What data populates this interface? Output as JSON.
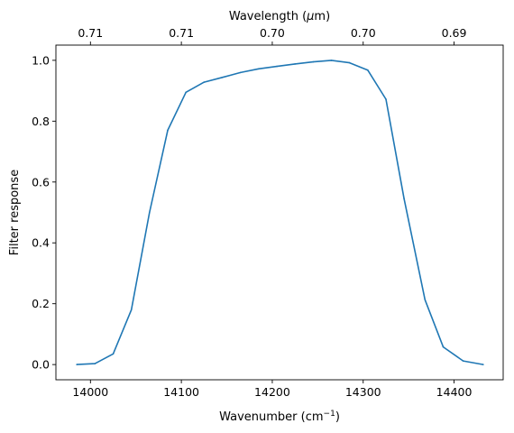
{
  "chart_data": {
    "type": "line",
    "xlabel_main": "Wavenumber (cm",
    "xlabel_sup": "−1",
    "xlabel_end": ")",
    "top_xlabel_main": "Wavelength (",
    "top_xlabel_mu": "μ",
    "top_xlabel_end": "m)",
    "ylabel": "Filter response",
    "xlim": [
      13962,
      14454
    ],
    "ylim": [
      -0.05,
      1.05
    ],
    "xticks": [
      {
        "value": 14000,
        "label": "14000"
      },
      {
        "value": 14100,
        "label": "14100"
      },
      {
        "value": 14200,
        "label": "14200"
      },
      {
        "value": 14300,
        "label": "14300"
      },
      {
        "value": 14400,
        "label": "14400"
      }
    ],
    "yticks": [
      {
        "value": 0.0,
        "label": "0.0"
      },
      {
        "value": 0.2,
        "label": "0.2"
      },
      {
        "value": 0.4,
        "label": "0.4"
      },
      {
        "value": 0.6,
        "label": "0.6"
      },
      {
        "value": 0.8,
        "label": "0.8"
      },
      {
        "value": 1.0,
        "label": "1.0"
      }
    ],
    "top_ticks": [
      {
        "value": 14000,
        "label": "0.71"
      },
      {
        "value": 14100,
        "label": "0.71"
      },
      {
        "value": 14200,
        "label": "0.70"
      },
      {
        "value": 14300,
        "label": "0.70"
      },
      {
        "value": 14400,
        "label": "0.69"
      }
    ],
    "series_color": "#1f77b4",
    "x": [
      13985,
      14005,
      14025,
      14045,
      14065,
      14085,
      14105,
      14125,
      14145,
      14165,
      14185,
      14205,
      14225,
      14245,
      14265,
      14285,
      14305,
      14325,
      14345,
      14368,
      14388,
      14410,
      14432
    ],
    "y": [
      0.0,
      0.003,
      0.035,
      0.18,
      0.5,
      0.77,
      0.895,
      0.928,
      0.944,
      0.96,
      0.972,
      0.98,
      0.988,
      0.995,
      1.0,
      0.992,
      0.968,
      0.872,
      0.545,
      0.213,
      0.058,
      0.012,
      0.0
    ]
  }
}
